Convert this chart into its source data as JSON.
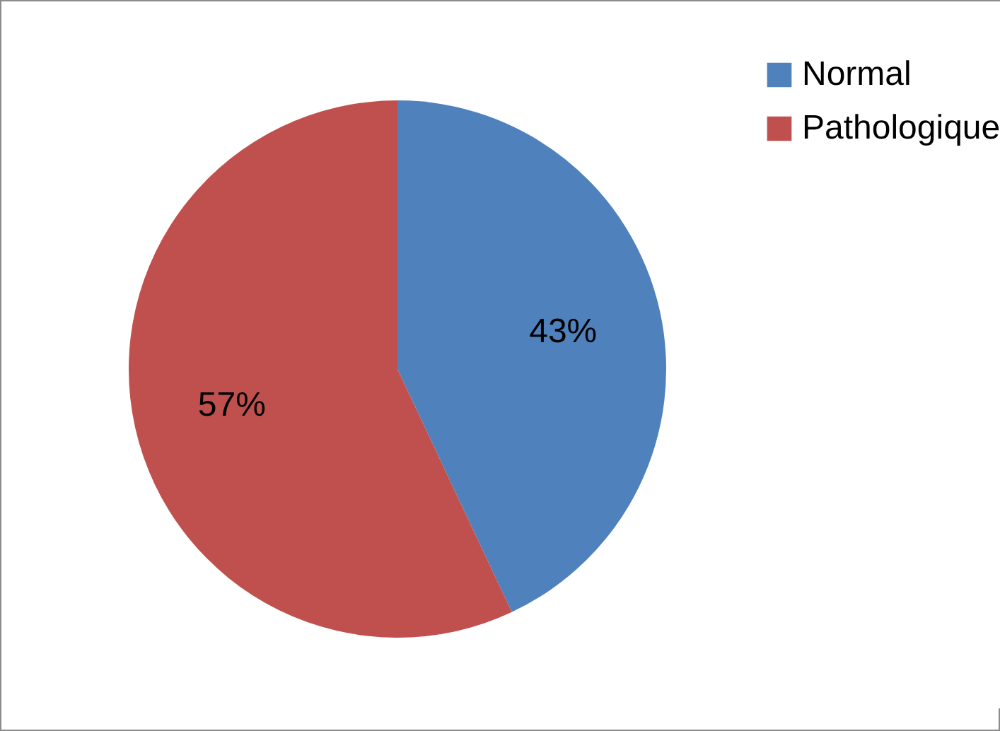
{
  "chart_data": {
    "type": "pie",
    "categories": [
      "Normal",
      "Pathologique"
    ],
    "values": [
      43,
      57
    ],
    "colors": [
      "#4f81bd",
      "#c0504d"
    ],
    "value_labels": [
      "43%",
      "57%"
    ],
    "legend": "right"
  }
}
